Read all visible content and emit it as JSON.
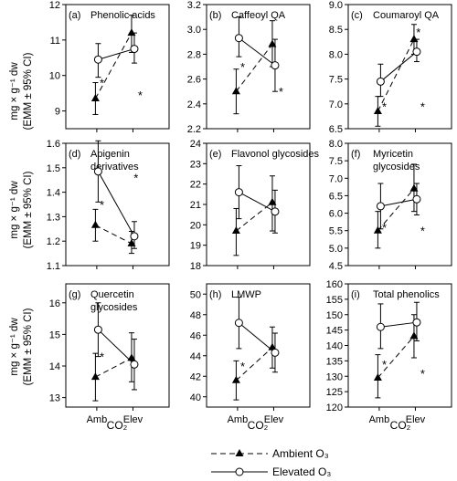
{
  "figure": {
    "ylabel_line1": "mg × g⁻¹ dw",
    "ylabel_line2": "(EMM ± 95% CI)",
    "xlabel": "CO₂",
    "legend": [
      {
        "label": "Ambient O₃",
        "marker": "triangle-filled",
        "line": "dashed"
      },
      {
        "label": "Elevated O₃",
        "marker": "circle-open",
        "line": "solid"
      }
    ]
  },
  "chart_data": [
    {
      "panel": "(a)",
      "title": "Phenolic acids",
      "type": "line",
      "categories": [
        "Amb",
        "Elev"
      ],
      "ylim": [
        8.5,
        12
      ],
      "ticks": [
        9,
        10,
        11,
        12
      ],
      "series": [
        {
          "name": "Ambient O₃",
          "values": [
            9.35,
            11.2
          ],
          "ci_low": [
            8.9,
            10.65
          ],
          "ci_high": [
            9.8,
            11.7
          ]
        },
        {
          "name": "Elevated O₃",
          "values": [
            10.45,
            10.75
          ],
          "ci_low": [
            9.95,
            10.35
          ],
          "ci_high": [
            10.9,
            11.2
          ]
        }
      ],
      "stars": [
        {
          "x": 0.35,
          "y": 9.8
        },
        {
          "x": 0.72,
          "y": 9.45
        }
      ]
    },
    {
      "panel": "(b)",
      "title": "Caffeoyl QA",
      "type": "line",
      "categories": [
        "Amb",
        "Elev"
      ],
      "ylim": [
        2.2,
        3.2
      ],
      "ticks": [
        2.2,
        2.4,
        2.6,
        2.8,
        3.0,
        3.2
      ],
      "series": [
        {
          "name": "Ambient O₃",
          "values": [
            2.5,
            2.88
          ],
          "ci_low": [
            2.32,
            2.7
          ],
          "ci_high": [
            2.68,
            3.07
          ]
        },
        {
          "name": "Elevated O₃",
          "values": [
            2.93,
            2.71
          ],
          "ci_low": [
            2.78,
            2.5
          ],
          "ci_high": [
            3.1,
            2.92
          ]
        }
      ],
      "stars": [
        {
          "x": 0.35,
          "y": 2.7
        },
        {
          "x": 0.72,
          "y": 2.5
        }
      ]
    },
    {
      "panel": "(c)",
      "title": "Coumaroyl QA",
      "type": "line",
      "categories": [
        "Amb",
        "Elev"
      ],
      "ylim": [
        6.5,
        9.0
      ],
      "ticks": [
        6.5,
        7.0,
        7.5,
        8.0,
        8.5,
        9.0
      ],
      "series": [
        {
          "name": "Ambient O₃",
          "values": [
            6.85,
            8.3
          ],
          "ci_low": [
            6.55,
            8.0
          ],
          "ci_high": [
            7.15,
            8.6
          ]
        },
        {
          "name": "Elevated O₃",
          "values": [
            7.45,
            8.05
          ],
          "ci_low": [
            7.15,
            7.85
          ],
          "ci_high": [
            7.8,
            8.3
          ]
        }
      ],
      "stars": [
        {
          "x": 0.35,
          "y": 6.95
        },
        {
          "x": 0.68,
          "y": 8.45
        },
        {
          "x": 0.72,
          "y": 6.95
        }
      ]
    },
    {
      "panel": "(d)",
      "title": "Apigenin derivatives",
      "type": "line",
      "categories": [
        "Amb",
        "Elev"
      ],
      "ylim": [
        1.1,
        1.6
      ],
      "ticks": [
        1.1,
        1.2,
        1.3,
        1.4,
        1.5,
        1.6
      ],
      "series": [
        {
          "name": "Ambient O₃",
          "values": [
            1.265,
            1.19
          ],
          "ci_low": [
            1.2,
            1.15
          ],
          "ci_high": [
            1.33,
            1.24
          ]
        },
        {
          "name": "Elevated O₃",
          "values": [
            1.485,
            1.22
          ],
          "ci_low": [
            1.36,
            1.17
          ],
          "ci_high": [
            1.61,
            1.28
          ]
        }
      ],
      "stars": [
        {
          "x": 0.35,
          "y": 1.35
        },
        {
          "x": 0.68,
          "y": 1.46
        }
      ]
    },
    {
      "panel": "(e)",
      "title": "Flavonol glycosides",
      "type": "line",
      "categories": [
        "Amb",
        "Elev"
      ],
      "ylim": [
        18,
        24
      ],
      "ticks": [
        18,
        19,
        20,
        21,
        22,
        23,
        24
      ],
      "series": [
        {
          "name": "Ambient O₃",
          "values": [
            19.7,
            21.1
          ],
          "ci_low": [
            18.5,
            19.7
          ],
          "ci_high": [
            20.8,
            22.4
          ]
        },
        {
          "name": "Elevated O₃",
          "values": [
            21.6,
            20.65
          ],
          "ci_low": [
            20.3,
            19.6
          ],
          "ci_high": [
            22.9,
            21.7
          ]
        }
      ],
      "stars": []
    },
    {
      "panel": "(f)",
      "title": "Myricetin glycosides",
      "type": "line",
      "categories": [
        "Amb",
        "Elev"
      ],
      "ylim": [
        4.5,
        8.0
      ],
      "ticks": [
        4.5,
        5.0,
        5.5,
        6.0,
        6.5,
        7.0,
        7.5,
        8.0
      ],
      "series": [
        {
          "name": "Ambient O₃",
          "values": [
            5.5,
            6.7
          ],
          "ci_low": [
            5.0,
            6.05
          ],
          "ci_high": [
            6.05,
            7.4
          ]
        },
        {
          "name": "Elevated O₃",
          "values": [
            6.2,
            6.4
          ],
          "ci_low": [
            5.55,
            5.95
          ],
          "ci_high": [
            6.85,
            6.85
          ]
        }
      ],
      "stars": [
        {
          "x": 0.35,
          "y": 5.6
        },
        {
          "x": 0.72,
          "y": 5.5
        }
      ]
    },
    {
      "panel": "(g)",
      "title": "Quercetin glycosides",
      "type": "line",
      "categories": [
        "Amb",
        "Elev"
      ],
      "ylim": [
        12.7,
        16.6
      ],
      "ticks": [
        13,
        14,
        15,
        16
      ],
      "series": [
        {
          "name": "Ambient O₃",
          "values": [
            13.65,
            14.25
          ],
          "ci_low": [
            12.9,
            13.5
          ],
          "ci_high": [
            14.4,
            15.05
          ]
        },
        {
          "name": "Elevated O₃",
          "values": [
            15.15,
            14.05
          ],
          "ci_low": [
            14.3,
            13.25
          ],
          "ci_high": [
            16.0,
            14.85
          ]
        }
      ],
      "stars": [
        {
          "x": 0.35,
          "y": 14.3
        }
      ]
    },
    {
      "panel": "(h)",
      "title": "LMWP",
      "type": "line",
      "categories": [
        "Amb",
        "Elev"
      ],
      "ylim": [
        39,
        51
      ],
      "ticks": [
        40,
        42,
        44,
        46,
        48,
        50
      ],
      "series": [
        {
          "name": "Ambient O₃",
          "values": [
            41.6,
            44.8
          ],
          "ci_low": [
            39.7,
            42.8
          ],
          "ci_high": [
            43.5,
            46.8
          ]
        },
        {
          "name": "Elevated O₃",
          "values": [
            47.2,
            44.3
          ],
          "ci_low": [
            44.7,
            42.4
          ],
          "ci_high": [
            49.7,
            46.2
          ]
        }
      ],
      "stars": [
        {
          "x": 0.35,
          "y": 43.0
        }
      ]
    },
    {
      "panel": "(i)",
      "title": "Total phenolics",
      "type": "line",
      "categories": [
        "Amb",
        "Elev"
      ],
      "ylim": [
        120,
        160
      ],
      "ticks": [
        120,
        125,
        130,
        135,
        140,
        145,
        150,
        155,
        160
      ],
      "series": [
        {
          "name": "Ambient O₃",
          "values": [
            129.5,
            143.0
          ],
          "ci_low": [
            123.0,
            136.0
          ],
          "ci_high": [
            137.0,
            150.0
          ]
        },
        {
          "name": "Elevated O₃",
          "values": [
            146.0,
            147.5
          ],
          "ci_low": [
            139.0,
            141.5
          ],
          "ci_high": [
            153.5,
            154.0
          ]
        }
      ],
      "stars": [
        {
          "x": 0.35,
          "y": 134.0
        },
        {
          "x": 0.72,
          "y": 131.0
        }
      ]
    }
  ]
}
